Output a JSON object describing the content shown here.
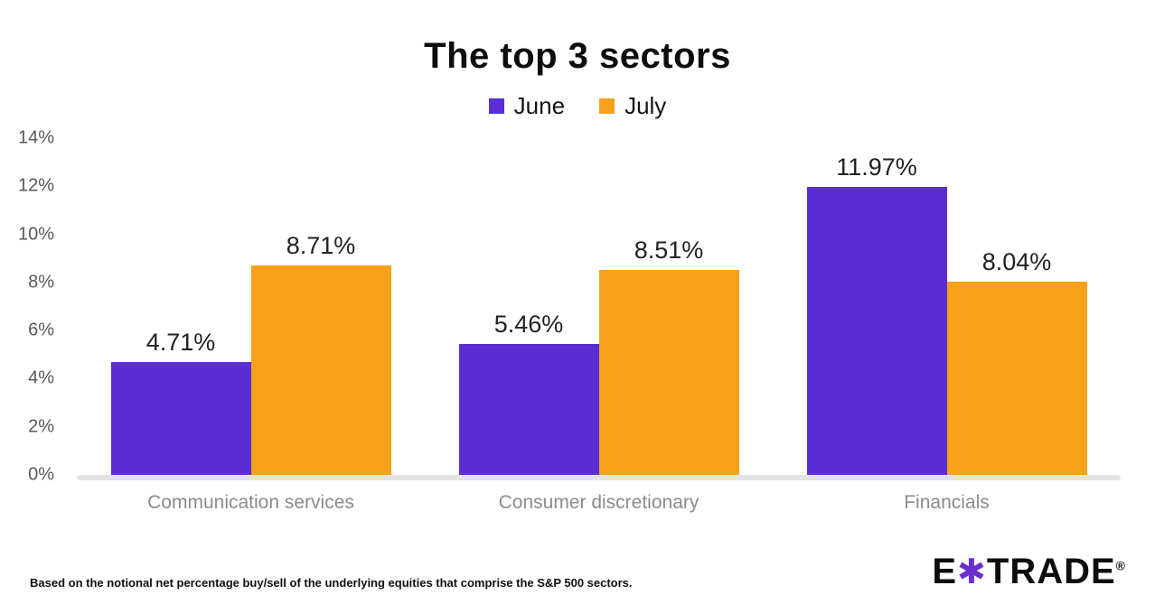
{
  "chart_data": {
    "type": "bar",
    "title": "The top 3 sectors",
    "categories": [
      "Communication services",
      "Consumer discretionary",
      "Financials"
    ],
    "series": [
      {
        "name": "June",
        "color": "#5b2dd5",
        "values": [
          4.71,
          5.46,
          11.97
        ]
      },
      {
        "name": "July",
        "color": "#f9a11b",
        "values": [
          8.71,
          8.51,
          8.04
        ]
      }
    ],
    "xlabel": "",
    "ylabel": "",
    "ylim": [
      0,
      14
    ],
    "ytick_step": 2,
    "ytick_labels": [
      "0%",
      "2%",
      "4%",
      "6%",
      "8%",
      "10%",
      "12%",
      "14%"
    ],
    "value_label_suffix": "%",
    "grid": false,
    "legend_position": "top"
  },
  "footnote": "Based on the notional net percentage buy/sell of the underlying equities that comprise the S&P 500 sectors.",
  "logo": {
    "text_before": "E",
    "asterisk": "✱",
    "text_after": "TRADE",
    "registered": "®",
    "asterisk_color": "#6b2fd1"
  }
}
